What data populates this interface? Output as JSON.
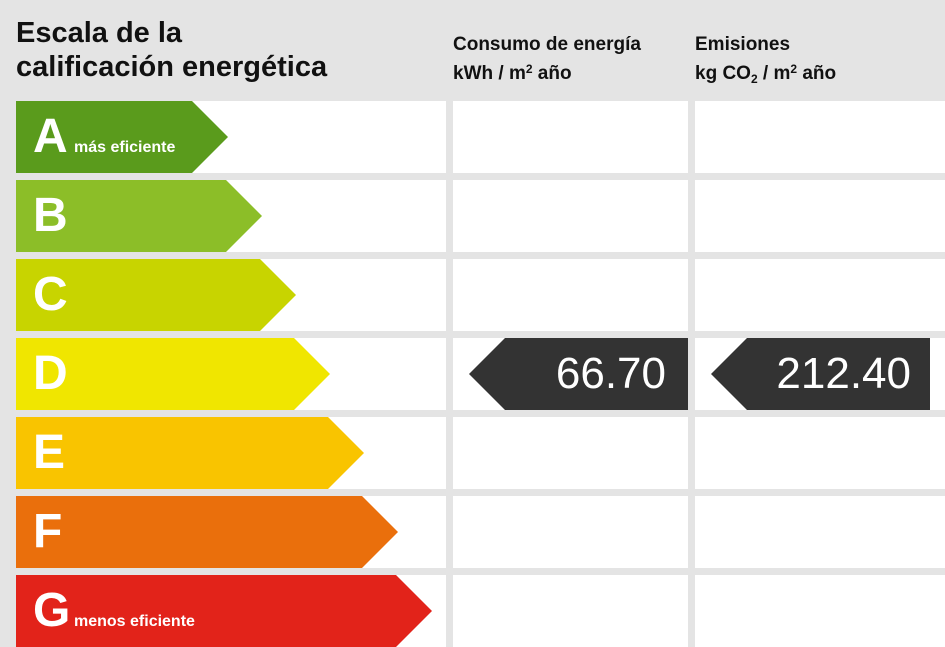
{
  "title": {
    "line1": "Escala de la",
    "line2": "calificación energética"
  },
  "energy_header": {
    "line1": "Consumo de energía",
    "unit_a": "kWh / m",
    "unit_sup": "2",
    "unit_b": " año"
  },
  "emission_header": {
    "line1": "Emisiones",
    "unit_a": "kg CO",
    "unit_sub": "2",
    "unit_c": " / m",
    "unit_sup": "2",
    "unit_b": " año"
  },
  "chart_data": {
    "type": "table",
    "ratings": [
      {
        "letter": "A",
        "desc": "más eficiente",
        "color": "#5a9b1c"
      },
      {
        "letter": "B",
        "desc": "",
        "color": "#8cbe28"
      },
      {
        "letter": "C",
        "desc": "",
        "color": "#c8d400"
      },
      {
        "letter": "D",
        "desc": "",
        "color": "#f0e600"
      },
      {
        "letter": "E",
        "desc": "",
        "color": "#f9c400"
      },
      {
        "letter": "F",
        "desc": "",
        "color": "#ea6f0c"
      },
      {
        "letter": "G",
        "desc": "menos eficiente",
        "color": "#e2231a"
      }
    ],
    "current_rating": "D",
    "energy_consumption": "66.70",
    "emissions": "212.40",
    "marker_color": "#333333"
  }
}
